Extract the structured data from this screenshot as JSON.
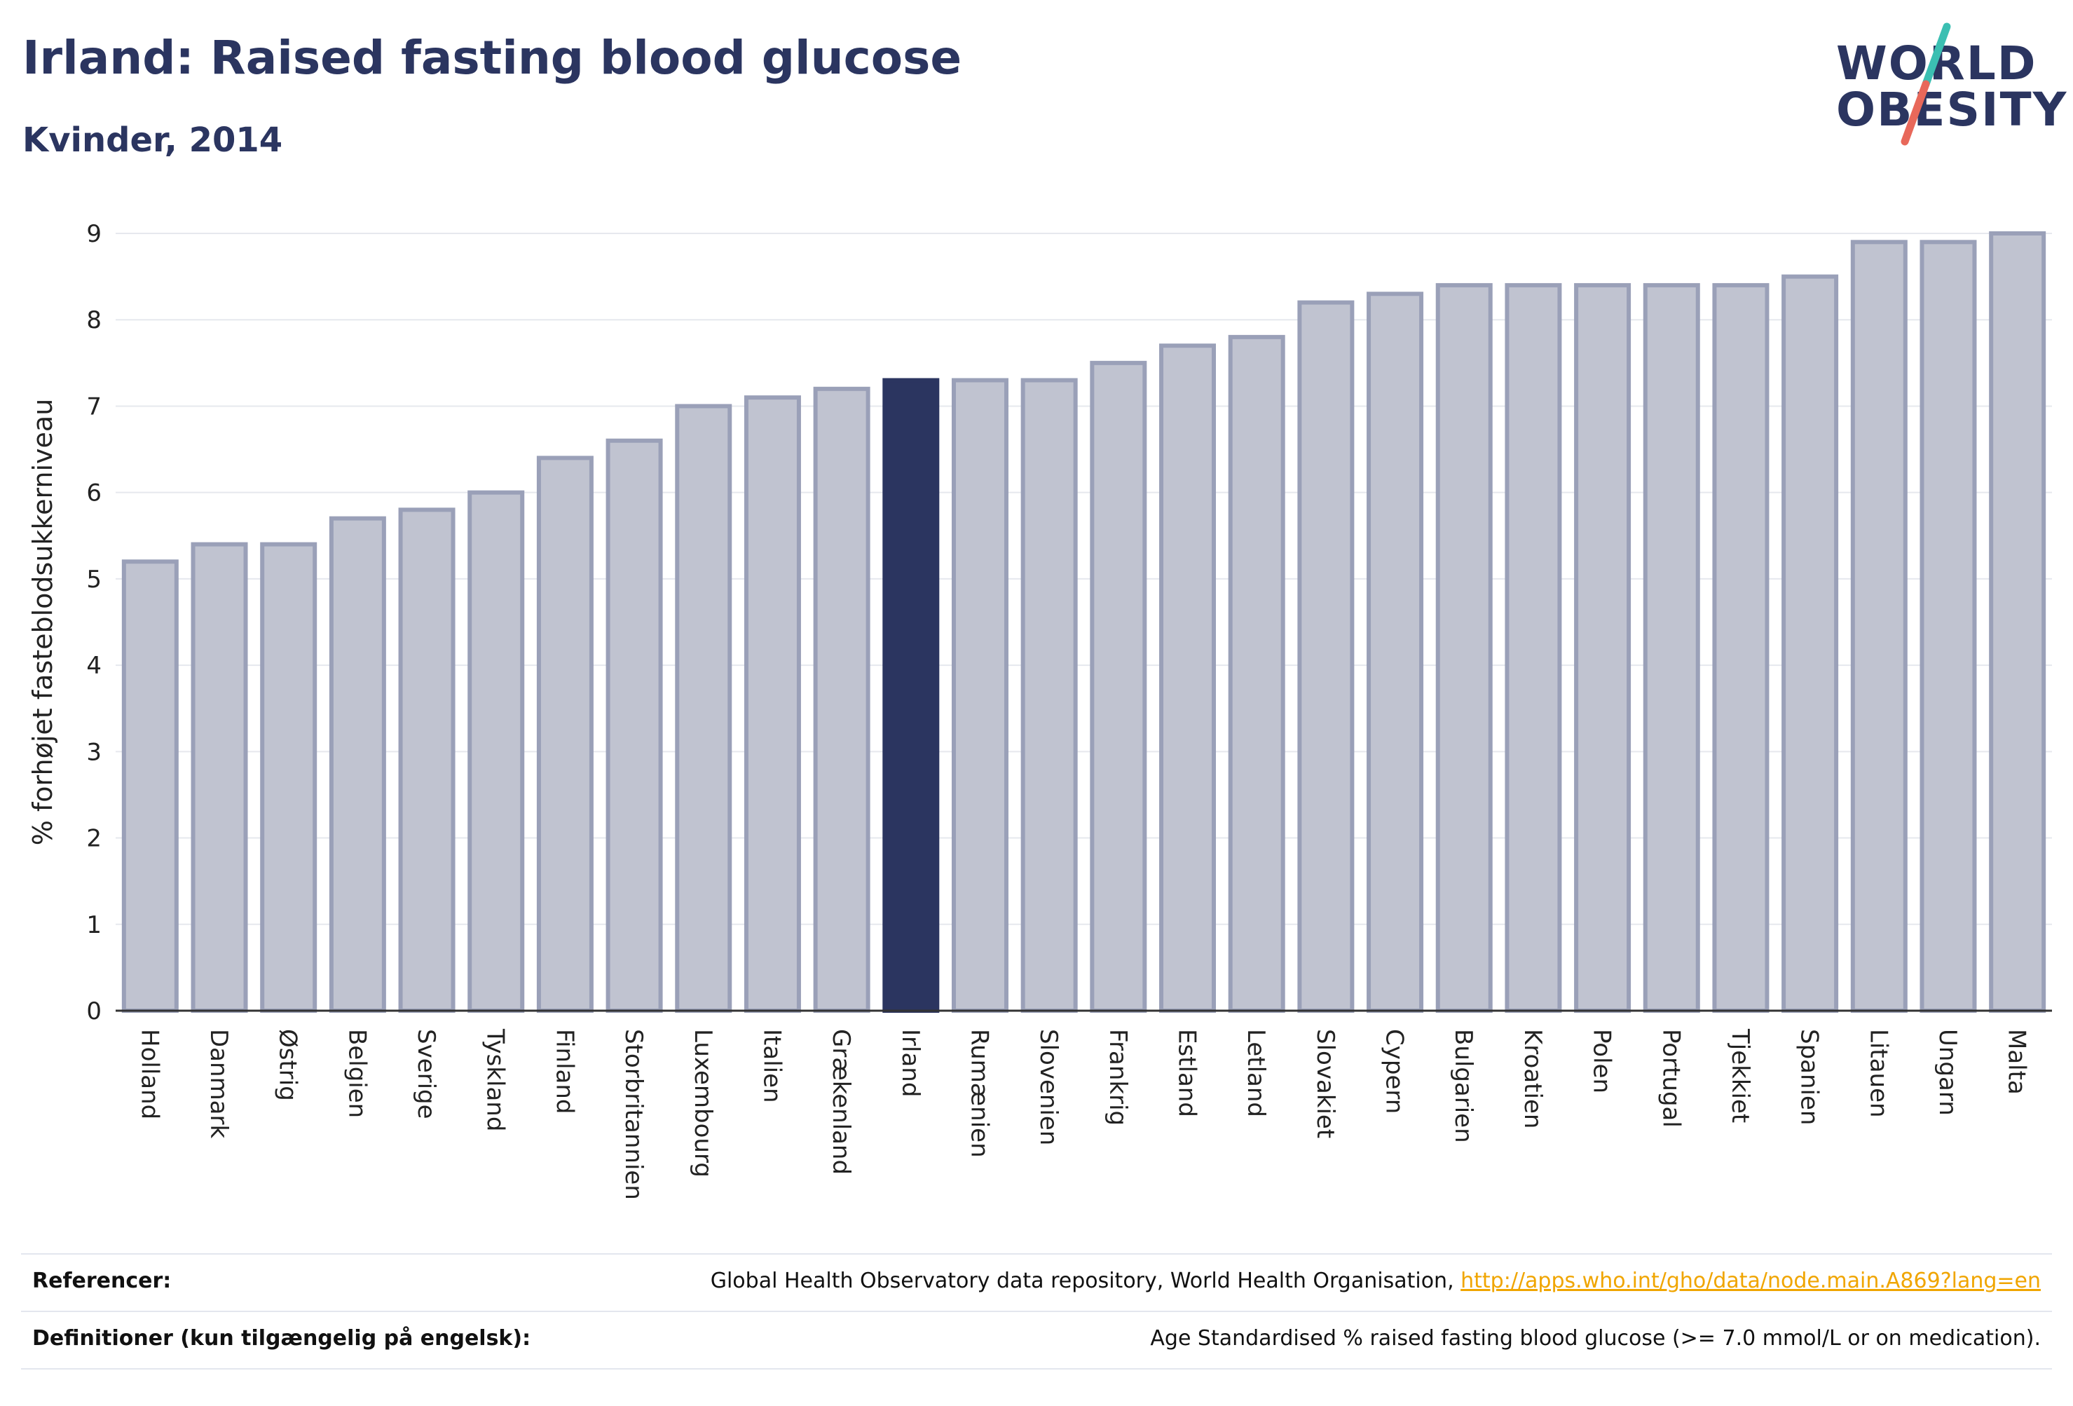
{
  "header": {
    "title": "Irland: Raised fasting blood glucose",
    "subtitle": "Kvinder, 2014"
  },
  "logo": {
    "line1": "WORLD",
    "line2": "OBESITY",
    "accent_teal": "#3bbfb2",
    "accent_coral": "#e8685a"
  },
  "colors": {
    "bar_fill": "#c0c3d0",
    "bar_stroke": "#9aa0b8",
    "highlight": "#2b3560",
    "grid": "#e6e8ee",
    "axis": "#333333"
  },
  "chart_data": {
    "type": "bar",
    "ylabel": "% forhøjet fasteblodsukkerniveau",
    "xlabel": "",
    "ylim": [
      0,
      9
    ],
    "yticks": [
      0,
      1,
      2,
      3,
      4,
      5,
      6,
      7,
      8,
      9
    ],
    "grid": true,
    "highlight": "Irland",
    "categories": [
      "Holland",
      "Danmark",
      "Østrig",
      "Belgien",
      "Sverige",
      "Tyskland",
      "Finland",
      "Storbritannien",
      "Luxembourg",
      "Italien",
      "Grækenland",
      "Irland",
      "Rumænien",
      "Slovenien",
      "Frankrig",
      "Estland",
      "Letland",
      "Slovakiet",
      "Cypern",
      "Bulgarien",
      "Kroatien",
      "Polen",
      "Portugal",
      "Tjekkiet",
      "Spanien",
      "Litauen",
      "Ungarn",
      "Malta"
    ],
    "values": [
      5.2,
      5.4,
      5.4,
      5.7,
      5.8,
      6.0,
      6.4,
      6.6,
      7.0,
      7.1,
      7.2,
      7.3,
      7.3,
      7.3,
      7.5,
      7.7,
      7.8,
      8.2,
      8.3,
      8.4,
      8.4,
      8.4,
      8.4,
      8.4,
      8.5,
      8.9,
      8.9,
      9.0
    ]
  },
  "footer": {
    "references_label": "Referencer:",
    "references_text": "Global Health Observatory data repository, World Health Organisation, ",
    "references_link": "http://apps.who.int/gho/data/node.main.A869?lang=en",
    "definitions_label": "Definitioner (kun tilgængelig på engelsk):",
    "definitions_text": "Age Standardised % raised fasting blood glucose (>= 7.0 mmol/L or on medication)."
  }
}
